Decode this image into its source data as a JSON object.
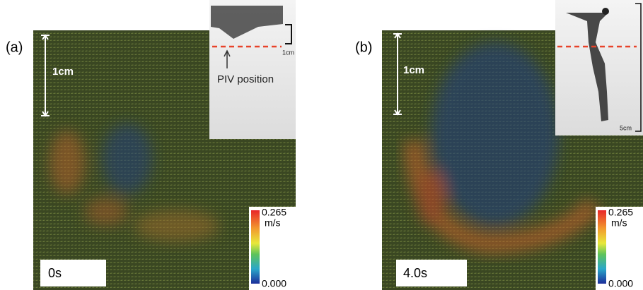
{
  "panels": [
    {
      "label": "(a)",
      "scale_label": "1cm",
      "inset": {
        "scale_label": "1cm",
        "annotation": "PIV position"
      },
      "colorbar": {
        "max": "0.265",
        "unit": "m/s",
        "min": "0.000"
      },
      "time": "0s"
    },
    {
      "label": "(b)",
      "scale_label": "1cm",
      "inset": {
        "scale_label": "5cm"
      },
      "colorbar": {
        "max": "0.265",
        "unit": "m/s",
        "min": "0.000"
      },
      "time": "4.0s"
    }
  ]
}
